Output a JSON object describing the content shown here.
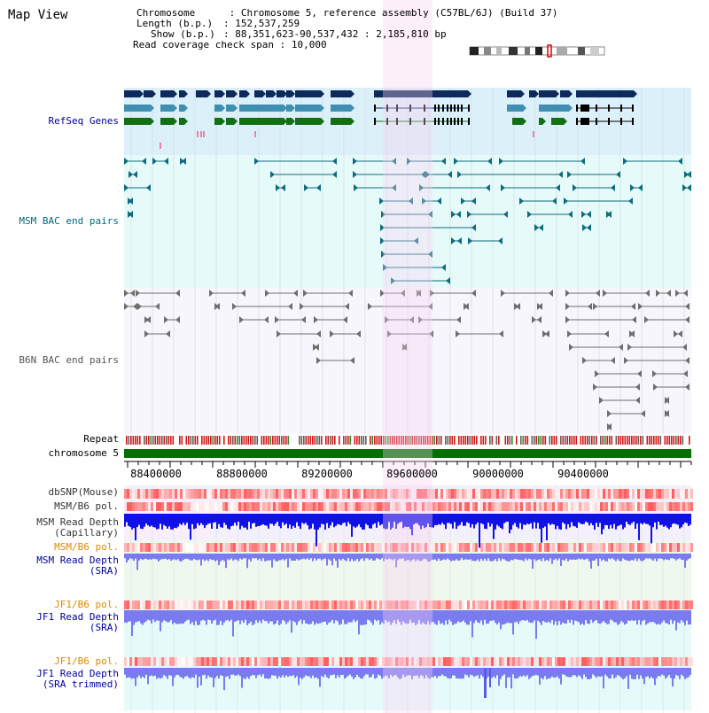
{
  "view": {
    "title": "Map View",
    "info": {
      "chromosome_key": "Chromosome",
      "chromosome_val": "Chromosome 5, reference assembly (C57BL/6J) (Build 37)",
      "length_key": "Length (b.p.)",
      "length_val": "152,537,259",
      "show_key": "Show (b.p.)",
      "show_val": "88,351,623-90,537,432 : 2,185,810 bp",
      "coverage_key": "Read coverage check span",
      "coverage_val": "10,000"
    }
  },
  "tracks": {
    "refseq": "RefSeq Genes",
    "msm_bac": "MSM BAC end pairs",
    "b6n_bac": "B6N BAC end pairs",
    "repeat": "Repeat",
    "chromosome": "chromosome 5",
    "dbsnp": "dbSNP(Mouse)",
    "msm_b6_pol_1": "MSM/B6 pol.",
    "msm_depth_cap_1": "MSM Read Depth",
    "msm_depth_cap_2": "(Capillary)",
    "msm_b6_pol_2": "MSM/B6 pol.",
    "msm_depth_sra_1": "MSM Read Depth",
    "msm_depth_sra_2": "(SRA)",
    "jf1_b6_pol_1": "JF1/B6 pol.",
    "jf1_depth_sra_1": "JF1 Read Depth",
    "jf1_depth_sra_2": "(SRA)",
    "jf1_b6_pol_2": "JF1/B6 pol.",
    "jf1_depth_trim_1": "JF1 Read Depth",
    "jf1_depth_trim_2": "(SRA trimmed)"
  },
  "axis": {
    "ticks": [
      "88400000",
      "88800000",
      "89200000",
      "89600000",
      "90000000",
      "90400000"
    ]
  },
  "colors": {
    "refseq_dark": "#0e2a5a",
    "refseq_mid": "#3f8fb0",
    "refseq_green": "#127012",
    "msm_bac": "#0f6b7d",
    "b6n_bac": "#6e6e6e",
    "repeat": "#d01818",
    "chromosome": "#007000",
    "highlight": "#f8d0f0",
    "depth_capillary": "#1010e8",
    "depth_sra": "#7b7bf0",
    "label_blue": "#000099",
    "label_orange": "#e08800",
    "label_teal": "#006a7a"
  }
}
